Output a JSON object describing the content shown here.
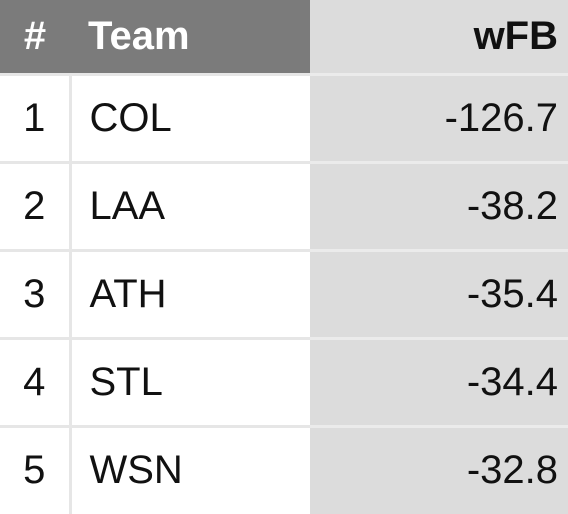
{
  "table": {
    "header": [
      "#",
      "Team",
      "wFB"
    ],
    "rows": [
      [
        "1",
        "COL",
        "-126.7"
      ],
      [
        "2",
        "LAA",
        "-38.2"
      ],
      [
        "3",
        "ATH",
        "-35.4"
      ],
      [
        "4",
        "STL",
        "-34.4"
      ],
      [
        "5",
        "WSN",
        "-32.8"
      ]
    ]
  }
}
